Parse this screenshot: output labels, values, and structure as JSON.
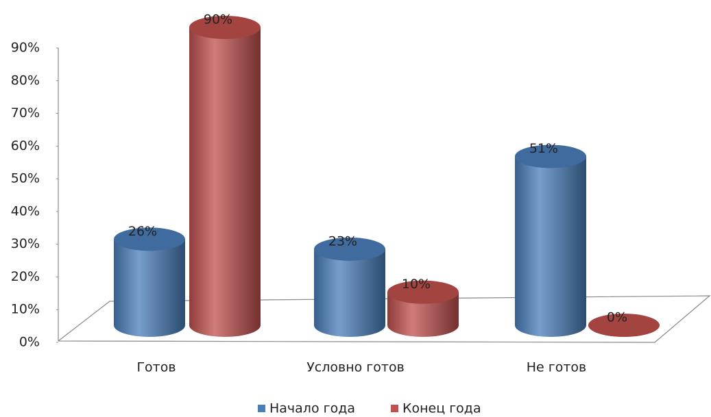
{
  "chart_data": {
    "type": "bar3d",
    "categories": [
      "Готов",
      "Условно готов",
      "Не готов"
    ],
    "series": [
      {
        "name": "Начало года",
        "color": "#4a7ebb",
        "values": [
          26,
          23,
          51
        ],
        "value_labels": [
          "26%",
          "23%",
          "51%"
        ]
      },
      {
        "name": "Конец года",
        "color": "#c0504d",
        "values": [
          90,
          10,
          0
        ],
        "value_labels": [
          "90%",
          "10%",
          "0%"
        ]
      }
    ],
    "ylim": [
      0,
      90
    ],
    "yticks": [
      {
        "value": 0,
        "label": "0%"
      },
      {
        "value": 10,
        "label": "10%"
      },
      {
        "value": 20,
        "label": "20%"
      },
      {
        "value": 30,
        "label": "30%"
      },
      {
        "value": 40,
        "label": "40%"
      },
      {
        "value": 50,
        "label": "50%"
      },
      {
        "value": 60,
        "label": "60%"
      },
      {
        "value": 70,
        "label": "70%"
      },
      {
        "value": 80,
        "label": "80%"
      },
      {
        "value": 90,
        "label": "90%"
      }
    ],
    "legend": "bottom"
  }
}
